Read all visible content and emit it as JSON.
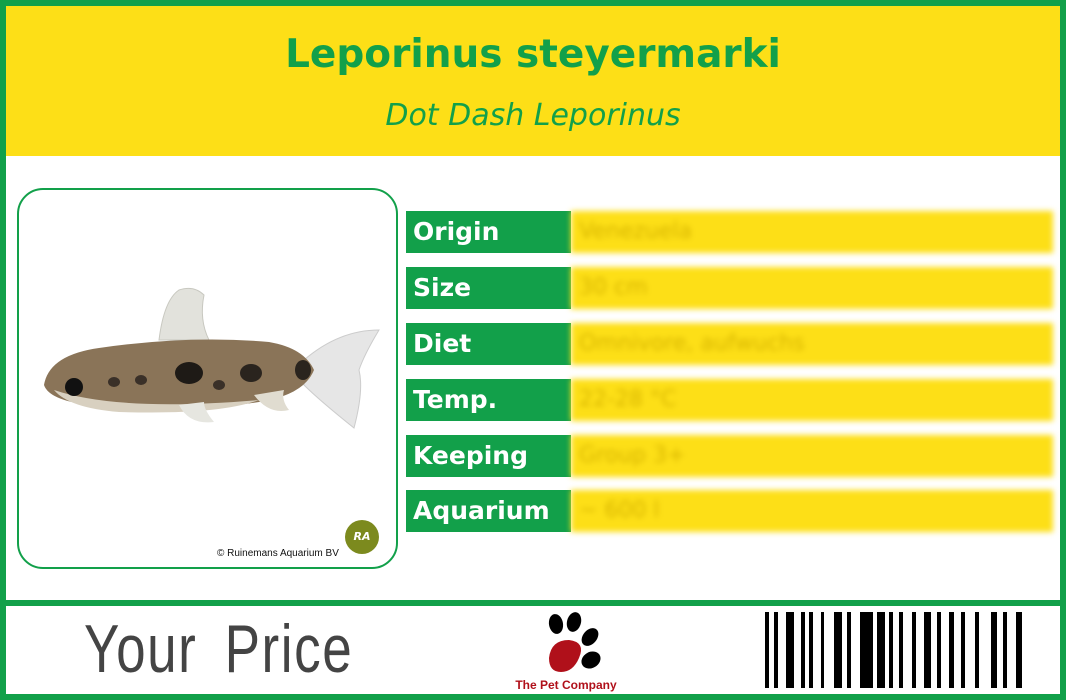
{
  "header": {
    "title": "Leporinus steyermarki",
    "subtitle": "Dot Dash Leporinus"
  },
  "photo": {
    "credit": "© Ruinemans Aquarium BV",
    "badge": "RA"
  },
  "facts": [
    {
      "label": "Origin",
      "value": "Venezuela"
    },
    {
      "label": "Size",
      "value": "30 cm"
    },
    {
      "label": "Diet",
      "value": "Omnivore, aufwuchs"
    },
    {
      "label": "Temp.",
      "value": "22-28 °C"
    },
    {
      "label": "Keeping",
      "value": "Group 3+"
    },
    {
      "label": "Aquarium",
      "value": "~ 600 l"
    }
  ],
  "footer": {
    "price_label": "Your Price",
    "brand": "The Pet Company"
  },
  "colors": {
    "green": "#12a04a",
    "yellow": "#fddf17",
    "brand_red": "#b0101a"
  }
}
